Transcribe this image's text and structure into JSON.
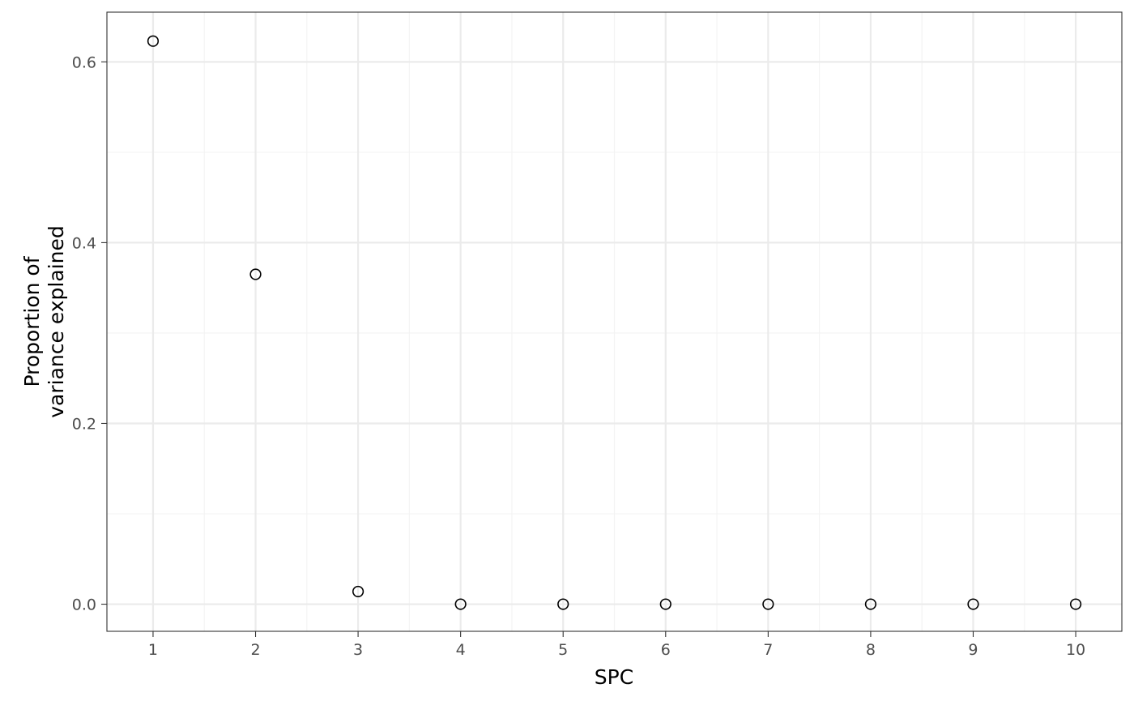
{
  "chart_data": {
    "type": "scatter",
    "title": "",
    "xlabel": "SPC",
    "ylabel_lines": [
      "Proportion of",
      "variance explained"
    ],
    "x": [
      1,
      2,
      3,
      4,
      5,
      6,
      7,
      8,
      9,
      10
    ],
    "y": [
      0.623,
      0.365,
      0.014,
      0.0,
      0.0,
      0.0,
      0.0,
      0.0,
      0.0,
      0.0
    ],
    "xlim": [
      0.55,
      10.45
    ],
    "ylim": [
      -0.03,
      0.655
    ],
    "x_ticks": [
      1,
      2,
      3,
      4,
      5,
      6,
      7,
      8,
      9,
      10
    ],
    "y_ticks": [
      0.0,
      0.2,
      0.4,
      0.6
    ],
    "y_tick_labels": [
      "0.0",
      "0.2",
      "0.4",
      "0.6"
    ],
    "grid": true,
    "legend": "none",
    "marker": "open-circle",
    "colors": {
      "background": "#ffffff",
      "panel_border": "#333333",
      "grid_major": "#ebebeb",
      "grid_minor": "#f3f3f3",
      "tick_label": "#4d4d4d",
      "marker_stroke": "#000000"
    }
  }
}
